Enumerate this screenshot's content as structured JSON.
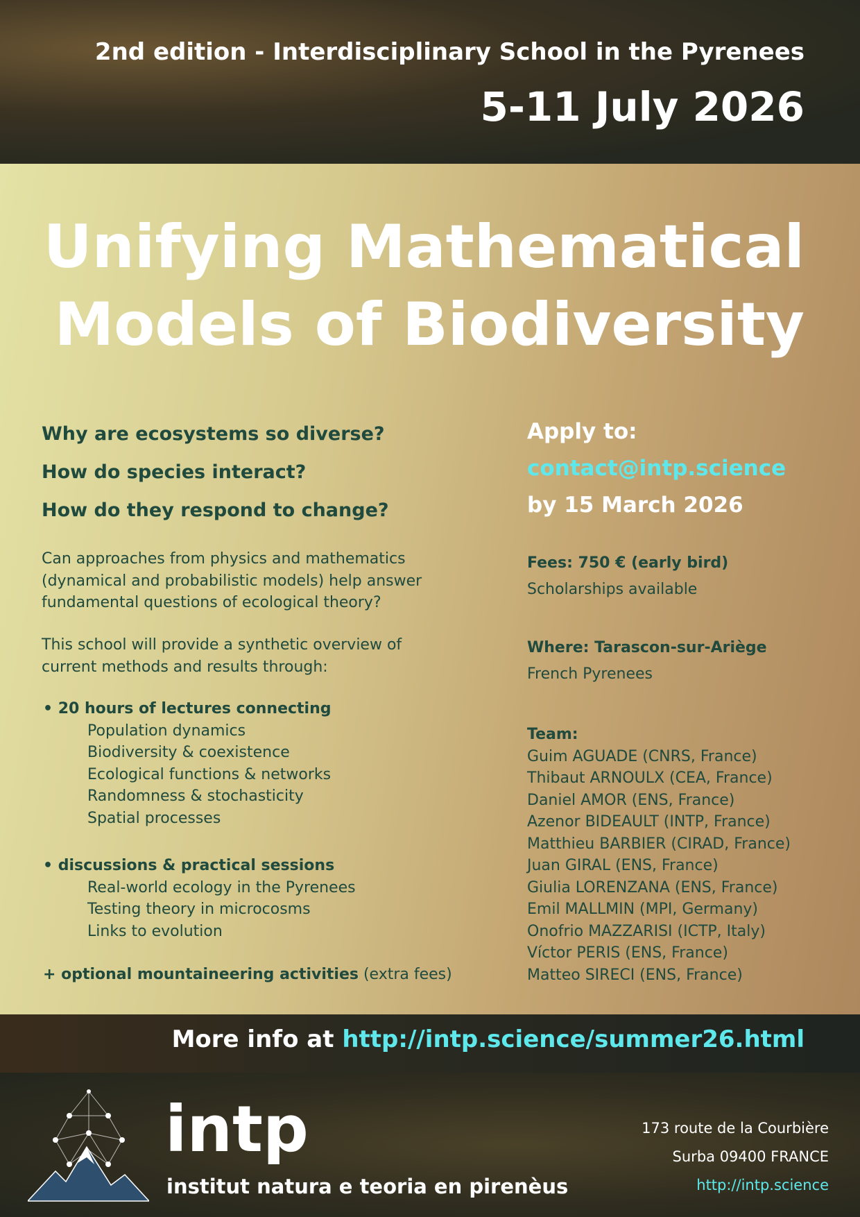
{
  "header": {
    "edition": "2nd edition - Interdisciplinary School in the Pyrenees",
    "dates": "5-11 July 2026"
  },
  "title": {
    "line1": "Unifying Mathematical",
    "line2": "Models of Biodiversity"
  },
  "questions": [
    "Why are ecosystems so diverse?",
    "How do species interact?",
    "How do they respond to change?"
  ],
  "intro": {
    "p1": [
      "Can approaches from physics and mathematics",
      "(dynamical and probabilistic models) help answer",
      "fundamental questions of ecological theory?"
    ],
    "p2": [
      "This school will provide a synthetic overview of",
      "current methods and results through:"
    ]
  },
  "lectures": {
    "heading": "• 20 hours of lectures connecting",
    "items": [
      "Population dynamics",
      "Biodiversity & coexistence",
      "Ecological functions & networks",
      "Randomness & stochasticity",
      "Spatial processes"
    ]
  },
  "sessions": {
    "heading": "• discussions & practical sessions",
    "items": [
      "Real-world ecology in the Pyrenees",
      "Testing theory in microcosms",
      "Links to evolution"
    ]
  },
  "optional": {
    "bold": "+ optional mountaineering activities",
    "rest": " (extra fees)"
  },
  "apply": {
    "label": "Apply to:",
    "email": "contact@intp.science",
    "deadline": "by 15 March 2026"
  },
  "fees": {
    "label": "Fees: 750 € (early bird)",
    "note": "Scholarships available"
  },
  "where": {
    "label": "Where: Tarascon-sur-Ariège",
    "note": "French Pyrenees"
  },
  "team": {
    "label": "Team:",
    "members": [
      "Guim AGUADE (CNRS, France)",
      "Thibaut ARNOULX (CEA, France)",
      "Daniel AMOR (ENS, France)",
      "Azenor BIDEAULT (INTP, France)",
      "Matthieu BARBIER (CIRAD, France)",
      "Juan GIRAL (ENS, France)",
      "Giulia LORENZANA (ENS, France)",
      "Emil MALLMIN (MPI, Germany)",
      "Onofrio MAZZARISI (ICTP, Italy)",
      "Víctor PERIS (ENS, France)",
      "Matteo SIRECI (ENS, France)"
    ]
  },
  "more_info": {
    "prefix": "More info at ",
    "url": "http://intp.science/summer26.html"
  },
  "logo": {
    "name": "intp",
    "subtitle": "institut natura e teoria en pirenèus"
  },
  "address": {
    "line1": "173 route de la Courbière",
    "line2": "Surba 09400 FRANCE",
    "url": "http://intp.science"
  },
  "colors": {
    "text": "#1f4a3d",
    "link": "#5fe8ec"
  }
}
